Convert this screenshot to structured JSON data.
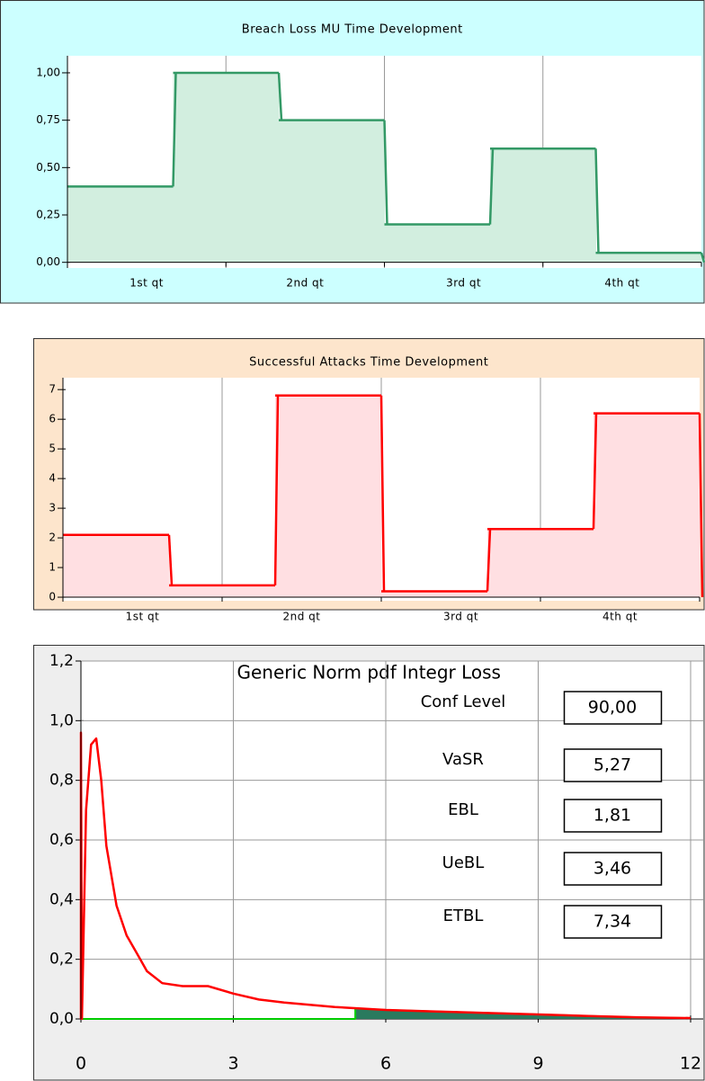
{
  "chart_data": [
    {
      "type": "step",
      "title": "Breach Loss MU Time Development",
      "x_labels": [
        "1st qt",
        "2nd qt",
        "3rd qt",
        "4th qt"
      ],
      "values": [
        0.4,
        1,
        0.75,
        0.2,
        0.6,
        0.05
      ],
      "color": "#339966",
      "fill": "#d2eedf",
      "background": "#ccffff",
      "grid": "x",
      "ylim": [
        -0.03,
        1.09
      ],
      "yticks": [
        {
          "value": 0,
          "label": "0,00"
        },
        {
          "value": 0.25,
          "label": "0,25"
        },
        {
          "value": 0.5,
          "label": "0,50"
        },
        {
          "value": 0.75,
          "label": "0,75"
        },
        {
          "value": 1,
          "label": "1,00"
        }
      ]
    },
    {
      "type": "step",
      "title": "Successful Attacks Time Development",
      "x_labels": [
        "1st qt",
        "2nd qt",
        "3rd qt",
        "4th qt"
      ],
      "values": [
        2.1,
        0.4,
        6.8,
        0.2,
        2.3,
        6.2
      ],
      "color": "#ff0000",
      "fill": "#ffdfe2",
      "background": "#fde5cc",
      "grid": "x",
      "ylim": [
        -0.12,
        7.4
      ],
      "yticks": [
        0,
        1,
        2,
        3,
        4,
        5,
        6,
        7
      ]
    },
    {
      "type": "line",
      "title": "Generic Norm pdf Integr Loss",
      "background": "#eeeeee",
      "grid": "both",
      "xlim": [
        0,
        12
      ],
      "xticks": [
        0,
        3,
        6,
        9,
        12
      ],
      "ylim": [
        0,
        1.2
      ],
      "yticks": [
        {
          "value": 0,
          "label": "0,0"
        },
        {
          "value": 0.2,
          "label": "0,2"
        },
        {
          "value": 0.4,
          "label": "0,4"
        },
        {
          "value": 0.6,
          "label": "0,6"
        },
        {
          "value": 0.8,
          "label": "0,8"
        },
        {
          "value": 1,
          "label": "1,0"
        },
        {
          "value": 1.2,
          "label": "1,2"
        }
      ],
      "series": [
        {
          "color": "#00cc00",
          "fill": "#2a7a5e",
          "x": [
            0,
            5.4,
            5.4,
            6,
            7,
            8,
            9,
            10,
            11,
            12
          ],
          "values": [
            0,
            0,
            0.035,
            0.03,
            0.025,
            0.02,
            0.015,
            0.01,
            0.005,
            0.003
          ]
        },
        {
          "color": "#ff0000",
          "x": [
            0,
            0,
            0.02,
            0.1,
            0.2,
            0.3,
            0.4,
            0.5,
            0.7,
            0.9,
            1.1,
            1.3,
            1.6,
            2.0,
            2.5,
            3.0,
            3.5,
            4.0,
            5.0,
            5.5,
            6,
            7,
            8,
            9,
            10,
            11,
            12
          ],
          "values": [
            0,
            0.96,
            0,
            0.7,
            0.92,
            0.94,
            0.8,
            0.58,
            0.38,
            0.28,
            0.22,
            0.16,
            0.12,
            0.11,
            0.11,
            0.085,
            0.065,
            0.055,
            0.04,
            0.035,
            0.03,
            0.025,
            0.02,
            0.015,
            0.01,
            0.005,
            0.003
          ]
        }
      ],
      "stats": [
        {
          "label": "Conf Level",
          "value": "90,00"
        },
        {
          "label": "VaSR",
          "value": "5,27"
        },
        {
          "label": "EBL",
          "value": "1,81"
        },
        {
          "label": "UeBL",
          "value": "3,46"
        },
        {
          "label": "ETBL",
          "value": "7,34"
        }
      ]
    }
  ]
}
